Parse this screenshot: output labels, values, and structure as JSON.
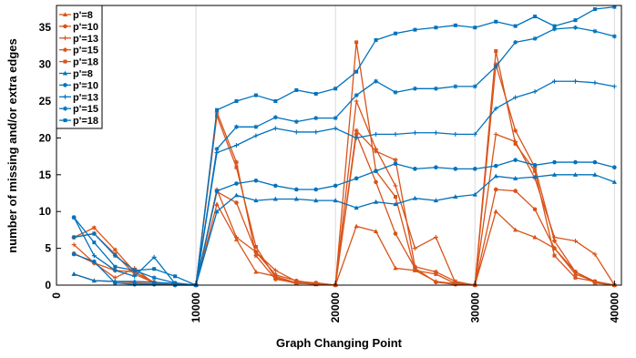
{
  "chart_data": {
    "type": "line",
    "title": "",
    "xlabel": "Graph Changing Point",
    "ylabel": "number of missing and/or extra edges",
    "xlim": [
      0,
      40500
    ],
    "ylim": [
      0,
      38
    ],
    "xticks": [
      0,
      10000,
      20000,
      30000,
      40000
    ],
    "xtick_labels": [
      "0",
      "10000",
      "20000",
      "30000",
      "40000"
    ],
    "yticks": [
      0,
      5,
      10,
      15,
      20,
      25,
      30,
      35
    ],
    "ytick_labels": [
      "0",
      "5",
      "10",
      "15",
      "20",
      "25",
      "30",
      "35"
    ],
    "grid": "x-only",
    "legend_position": "top-left",
    "colors": {
      "orange": "#d95319",
      "blue": "#0072bd"
    },
    "series": [
      {
        "name": "p'=8",
        "color": "#d95319",
        "marker": "triangle",
        "x": [
          1250,
          2700,
          4200,
          5600,
          7000,
          8500,
          10000,
          11500,
          12900,
          14300,
          15700,
          17200,
          18600,
          20000,
          21500,
          22900,
          24300,
          25700,
          27200,
          28600,
          30000,
          31500,
          32900,
          34300,
          35700,
          37200,
          38600,
          40000
        ],
        "values": [
          1.5,
          0.6,
          0.5,
          0.3,
          0.2,
          0.1,
          0.0,
          11.0,
          6.2,
          1.8,
          1.2,
          0.3,
          0.1,
          0.0,
          8.0,
          7.3,
          2.3,
          2.0,
          0.5,
          0.2,
          0.0,
          10.0,
          7.5,
          6.5,
          5.0,
          1.5,
          0.5,
          0.0
        ]
      },
      {
        "name": "p'=10",
        "color": "#d95319",
        "marker": "circle",
        "x": [
          1250,
          2700,
          4200,
          5600,
          7000,
          8500,
          10000,
          11500,
          12900,
          14300,
          15700,
          17200,
          18600,
          20000,
          21500,
          22900,
          24300,
          25700,
          27200,
          28600,
          30000,
          31500,
          32900,
          34300,
          35700,
          37200,
          38600,
          40000
        ],
        "values": [
          4.3,
          3.0,
          2.0,
          1.8,
          0.4,
          0.1,
          0.0,
          12.7,
          11.2,
          4.5,
          1.4,
          0.6,
          0.2,
          0.0,
          20.5,
          14.0,
          7.0,
          2.3,
          0.4,
          0.1,
          0.0,
          13.0,
          12.8,
          10.3,
          5.0,
          1.8,
          0.5,
          0.0
        ]
      },
      {
        "name": "p'=13",
        "color": "#d95319",
        "marker": "plus",
        "x": [
          1250,
          2700,
          4200,
          5600,
          7000,
          8500,
          10000,
          11500,
          12900,
          14300,
          15700,
          17200,
          18600,
          20000,
          21500,
          22900,
          24300,
          25700,
          27200,
          28600,
          30000,
          31500,
          32900,
          34300,
          35700,
          37200,
          38600,
          40000
        ],
        "values": [
          5.5,
          3.0,
          1.0,
          2.3,
          0.2,
          0.0,
          0.0,
          13.0,
          6.5,
          4.5,
          2.0,
          0.5,
          0.3,
          0.0,
          25.0,
          18.5,
          13.5,
          5.0,
          6.5,
          0.3,
          0.0,
          20.5,
          19.5,
          14.5,
          6.5,
          6.0,
          4.2,
          0.0
        ]
      },
      {
        "name": "p'=15",
        "color": "#d95319",
        "marker": "star",
        "x": [
          1250,
          2700,
          4200,
          5600,
          7000,
          8500,
          10000,
          11500,
          12900,
          14300,
          15700,
          17200,
          18600,
          20000,
          21500,
          22900,
          24300,
          25700,
          27200,
          28600,
          30000,
          31500,
          32900,
          34300,
          35700,
          37200,
          38600,
          40000
        ],
        "values": [
          6.5,
          7.8,
          4.8,
          1.8,
          0.3,
          0.2,
          0.0,
          23.5,
          16.7,
          4.0,
          0.8,
          0.3,
          0.2,
          0.0,
          21.0,
          18.2,
          17.0,
          2.5,
          1.8,
          0.5,
          0.0,
          30.0,
          21.0,
          16.0,
          6.0,
          1.8,
          0.3,
          0.0
        ]
      },
      {
        "name": "p'=18",
        "color": "#d95319",
        "marker": "square",
        "x": [
          1250,
          2700,
          4200,
          5600,
          7000,
          8500,
          10000,
          11500,
          12900,
          14300,
          15700,
          17200,
          18600,
          20000,
          21500,
          22900,
          24300,
          25700,
          27200,
          28600,
          30000,
          31500,
          32900,
          34300,
          35700,
          37200,
          38600,
          40000
        ],
        "values": [
          6.5,
          7.0,
          4.2,
          1.5,
          0.3,
          0.2,
          0.0,
          23.0,
          16.0,
          5.2,
          1.0,
          0.2,
          0.3,
          0.0,
          33.0,
          15.5,
          12.0,
          2.0,
          1.5,
          0.2,
          0.0,
          31.8,
          19.2,
          15.5,
          4.0,
          1.0,
          0.5,
          0.0
        ]
      },
      {
        "name": "p'=8",
        "color": "#0072bd",
        "marker": "triangle",
        "x": [
          1250,
          2700,
          4200,
          5600,
          7000,
          8500,
          10000,
          11500,
          12900,
          14300,
          15700,
          17200,
          18600,
          20000,
          21500,
          22900,
          24300,
          25700,
          27200,
          28600,
          30000,
          31500,
          32900,
          34300,
          35700,
          37200,
          38600,
          40000
        ],
        "values": [
          1.5,
          0.6,
          0.5,
          0.5,
          0.4,
          0.2,
          0.0,
          10.0,
          12.2,
          11.5,
          11.7,
          11.7,
          11.5,
          11.5,
          10.5,
          11.3,
          11.0,
          11.8,
          11.5,
          12.0,
          12.3,
          14.8,
          14.5,
          14.7,
          15.0,
          15.0,
          15.0,
          14.0
        ]
      },
      {
        "name": "p'=10",
        "color": "#0072bd",
        "marker": "circle",
        "x": [
          1250,
          2700,
          4200,
          5600,
          7000,
          8500,
          10000,
          11500,
          12900,
          14300,
          15700,
          17200,
          18600,
          20000,
          21500,
          22900,
          24300,
          25700,
          27200,
          28600,
          30000,
          31500,
          32900,
          34300,
          35700,
          37200,
          38600,
          40000
        ],
        "values": [
          4.2,
          3.2,
          0.3,
          0.1,
          0.1,
          0.0,
          0.0,
          12.8,
          13.8,
          14.2,
          13.5,
          13.0,
          13.0,
          13.5,
          14.5,
          15.5,
          16.5,
          15.8,
          16.0,
          15.8,
          15.8,
          16.2,
          17.0,
          16.3,
          16.7,
          16.7,
          16.7,
          16.0
        ]
      },
      {
        "name": "p'=13",
        "color": "#0072bd",
        "marker": "plus",
        "x": [
          1250,
          2700,
          4200,
          5600,
          7000,
          8500,
          10000,
          11500,
          12900,
          14300,
          15700,
          17200,
          18600,
          20000,
          21500,
          22900,
          24300,
          25700,
          27200,
          28600,
          30000,
          31500,
          32900,
          34300,
          35700,
          37200,
          38600,
          40000
        ],
        "values": [
          9.2,
          4.0,
          2.0,
          1.2,
          3.8,
          0.2,
          0.0,
          18.0,
          19.0,
          20.3,
          21.3,
          20.8,
          20.8,
          21.3,
          20.0,
          20.5,
          20.5,
          20.7,
          20.7,
          20.5,
          20.5,
          24.0,
          25.5,
          26.3,
          27.7,
          27.7,
          27.5,
          27.0
        ]
      },
      {
        "name": "p'=15",
        "color": "#0072bd",
        "marker": "star",
        "x": [
          1250,
          2700,
          4200,
          5600,
          7000,
          8500,
          10000,
          11500,
          12900,
          14300,
          15700,
          17200,
          18600,
          20000,
          21500,
          22900,
          24300,
          25700,
          27200,
          28600,
          30000,
          31500,
          32900,
          34300,
          35700,
          37200,
          38600,
          40000
        ],
        "values": [
          6.5,
          7.0,
          4.0,
          2.0,
          1.0,
          0.3,
          0.0,
          18.5,
          21.5,
          21.5,
          22.8,
          22.2,
          22.7,
          22.7,
          25.8,
          27.7,
          26.2,
          26.7,
          26.7,
          27.0,
          27.0,
          29.7,
          33.0,
          33.5,
          34.8,
          35.0,
          34.5,
          33.8
        ]
      },
      {
        "name": "p'=18",
        "color": "#0072bd",
        "marker": "square",
        "x": [
          1250,
          2700,
          4200,
          5600,
          7000,
          8500,
          10000,
          11500,
          12900,
          14300,
          15700,
          17200,
          18600,
          20000,
          21500,
          22900,
          24300,
          25700,
          27200,
          28600,
          30000,
          31500,
          32900,
          34300,
          35700,
          37200,
          38600,
          40000
        ],
        "values": [
          9.2,
          5.8,
          2.5,
          2.0,
          2.2,
          1.2,
          0.0,
          23.8,
          25.0,
          25.8,
          25.0,
          26.5,
          26.0,
          26.7,
          29.0,
          33.3,
          34.2,
          34.7,
          35.0,
          35.3,
          35.0,
          35.8,
          35.2,
          36.5,
          35.2,
          36.0,
          37.5,
          37.8
        ]
      }
    ]
  }
}
